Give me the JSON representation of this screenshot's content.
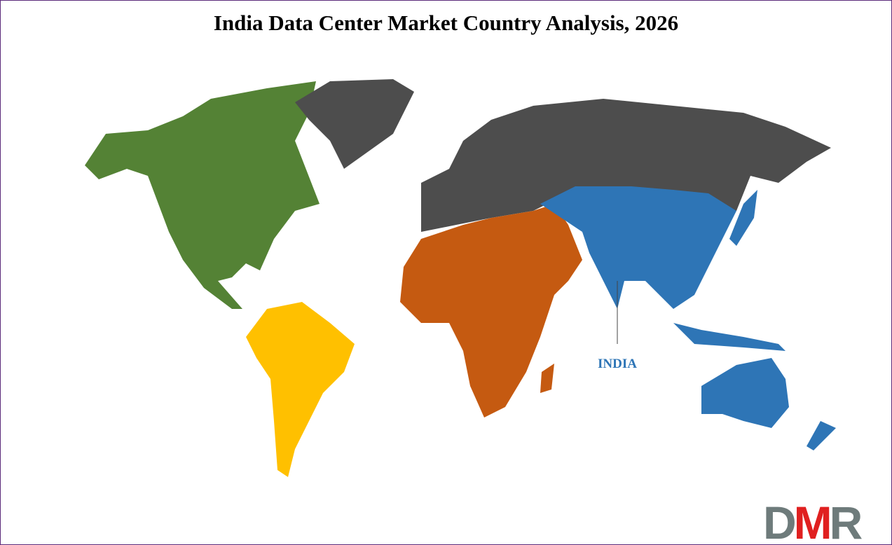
{
  "title": "India Data Center Market Country Analysis, 2026",
  "highlight_label": "INDIA",
  "logo_text": "DMR",
  "colors": {
    "north_america": "#548235",
    "south_america": "#ffc000",
    "europe_russia_greenland": "#4d4d4d",
    "africa_middle_east": "#c55a11",
    "asia_pacific": "#2e75b6",
    "border": "#5b2a7a",
    "logo_gray": "#6e7b7b",
    "logo_red": "#e02020"
  }
}
